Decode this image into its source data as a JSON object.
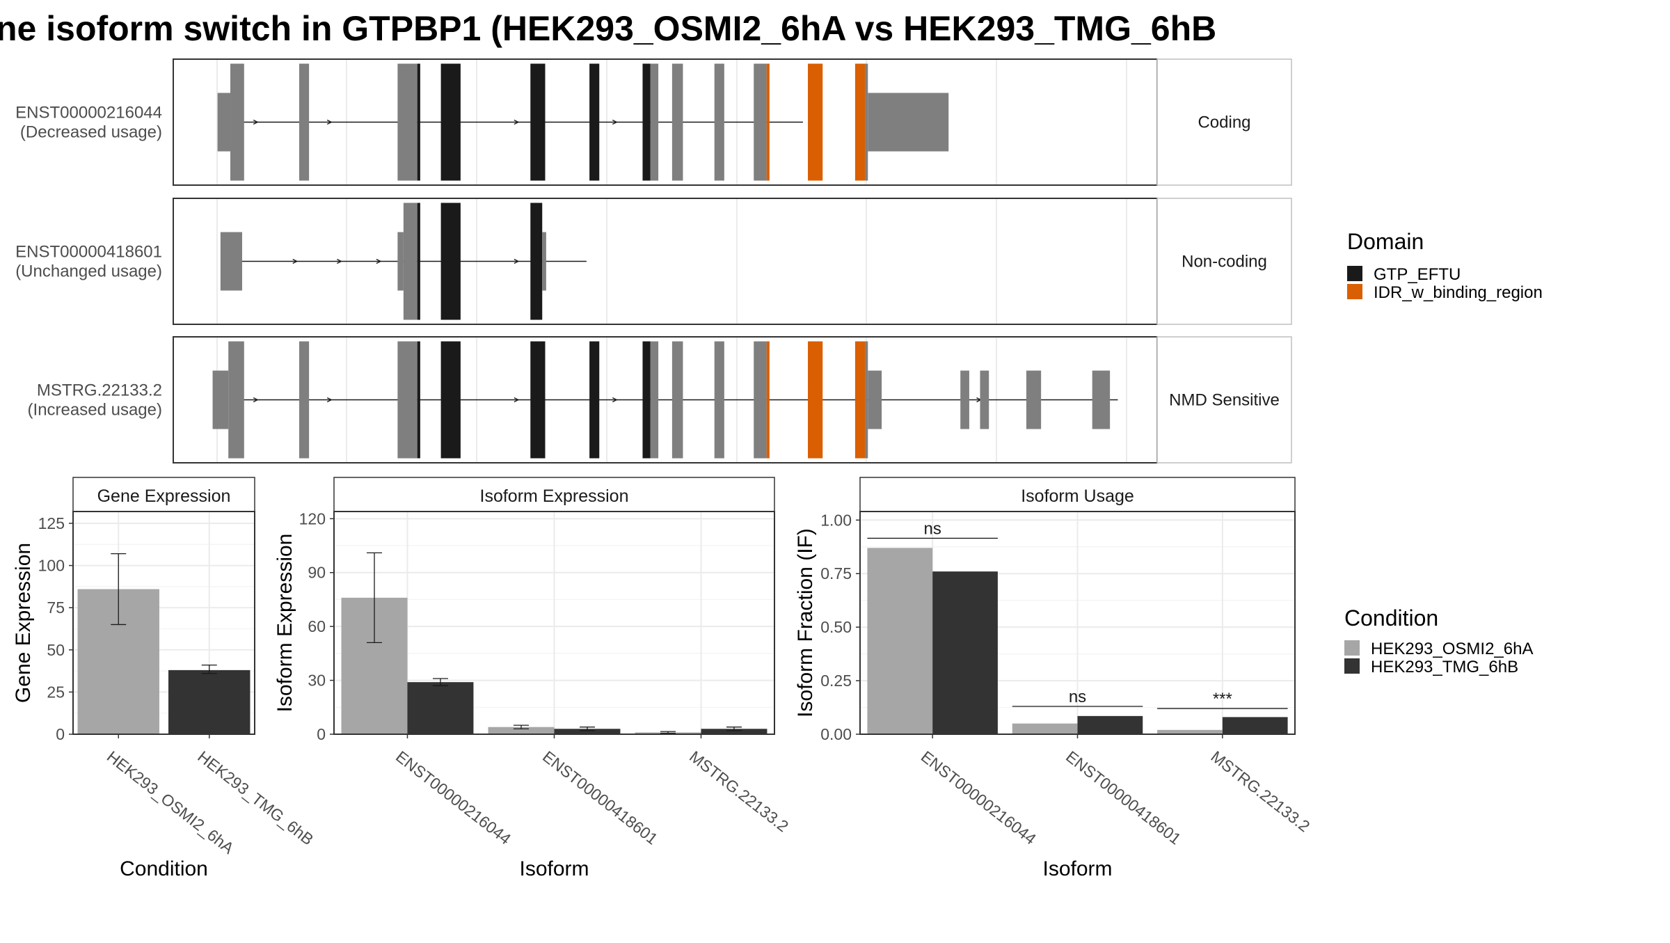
{
  "title": "ne isoform switch in GTPBP1 (HEK293_OSMI2_6hA vs HEK293_TMG_6hB",
  "colors": {
    "GTP_EFTU": "#1a1a1a",
    "IDR_w_binding_region": "#d95f02",
    "exon": "#7f7f7f",
    "OSMI2": "#a6a6a6",
    "TMG": "#333333",
    "strip_bg": "#ffffff",
    "grid": "#ebebeb",
    "border": "#333333"
  },
  "domain_legend": {
    "title": "Domain",
    "items": [
      {
        "label": "GTP_EFTU",
        "color_key": "GTP_EFTU"
      },
      {
        "label": "IDR_w_binding_region",
        "color_key": "IDR_w_binding_region"
      }
    ]
  },
  "condition_legend": {
    "title": "Condition",
    "items": [
      {
        "label": "HEK293_OSMI2_6hA",
        "color_key": "OSMI2"
      },
      {
        "label": "HEK293_TMG_6hB",
        "color_key": "TMG"
      }
    ]
  },
  "structure": {
    "tracks": [
      {
        "label_line1": "ENST00000216044",
        "label_line2": "(Decreased usage)",
        "strip": "Coding",
        "intron_range": [
          0.06,
          0.64
        ],
        "arrows": [
          0.085,
          0.16,
          0.24,
          0.35,
          0.45
        ],
        "blocks": [
          {
            "x0": 0.045,
            "x1": 0.058,
            "h": "utr",
            "c": "exon"
          },
          {
            "x0": 0.058,
            "x1": 0.072,
            "h": "cds",
            "c": "exon"
          },
          {
            "x0": 0.128,
            "x1": 0.138,
            "h": "cds",
            "c": "exon"
          },
          {
            "x0": 0.228,
            "x1": 0.248,
            "h": "cds",
            "c": "exon"
          },
          {
            "x0": 0.248,
            "x1": 0.251,
            "h": "cds",
            "c": "GTP_EFTU"
          },
          {
            "x0": 0.272,
            "x1": 0.292,
            "h": "cds",
            "c": "GTP_EFTU"
          },
          {
            "x0": 0.363,
            "x1": 0.378,
            "h": "cds",
            "c": "GTP_EFTU"
          },
          {
            "x0": 0.423,
            "x1": 0.433,
            "h": "cds",
            "c": "GTP_EFTU"
          },
          {
            "x0": 0.477,
            "x1": 0.485,
            "h": "cds",
            "c": "GTP_EFTU"
          },
          {
            "x0": 0.485,
            "x1": 0.493,
            "h": "cds",
            "c": "exon"
          },
          {
            "x0": 0.507,
            "x1": 0.518,
            "h": "cds",
            "c": "exon"
          },
          {
            "x0": 0.55,
            "x1": 0.56,
            "h": "cds",
            "c": "exon"
          },
          {
            "x0": 0.59,
            "x1": 0.603,
            "h": "cds",
            "c": "exon"
          },
          {
            "x0": 0.603,
            "x1": 0.606,
            "h": "cds",
            "c": "IDR_w_binding_region"
          },
          {
            "x0": 0.645,
            "x1": 0.66,
            "h": "cds",
            "c": "IDR_w_binding_region"
          },
          {
            "x0": 0.693,
            "x1": 0.703,
            "h": "cds",
            "c": "IDR_w_binding_region"
          },
          {
            "x0": 0.703,
            "x1": 0.706,
            "h": "cds",
            "c": "exon"
          },
          {
            "x0": 0.706,
            "x1": 0.788,
            "h": "utr",
            "c": "exon"
          }
        ]
      },
      {
        "label_line1": "ENST00000418601",
        "label_line2": "(Unchanged usage)",
        "strip": "Non-coding",
        "intron_range": [
          0.06,
          0.42
        ],
        "arrows": [
          0.125,
          0.17,
          0.21,
          0.35
        ],
        "blocks": [
          {
            "x0": 0.048,
            "x1": 0.07,
            "h": "utr",
            "c": "exon"
          },
          {
            "x0": 0.228,
            "x1": 0.234,
            "h": "utr",
            "c": "exon"
          },
          {
            "x0": 0.234,
            "x1": 0.248,
            "h": "cds",
            "c": "exon"
          },
          {
            "x0": 0.248,
            "x1": 0.251,
            "h": "cds",
            "c": "GTP_EFTU"
          },
          {
            "x0": 0.272,
            "x1": 0.292,
            "h": "cds",
            "c": "GTP_EFTU"
          },
          {
            "x0": 0.363,
            "x1": 0.375,
            "h": "cds",
            "c": "GTP_EFTU"
          },
          {
            "x0": 0.375,
            "x1": 0.379,
            "h": "utr",
            "c": "exon"
          }
        ]
      },
      {
        "label_line1": "MSTRG.22133.2",
        "label_line2": "(Increased usage)",
        "strip": "NMD Sensitive",
        "intron_range": [
          0.06,
          0.96
        ],
        "arrows": [
          0.085,
          0.16,
          0.24,
          0.35,
          0.45,
          0.82
        ],
        "blocks": [
          {
            "x0": 0.04,
            "x1": 0.056,
            "h": "utr",
            "c": "exon"
          },
          {
            "x0": 0.056,
            "x1": 0.072,
            "h": "cds",
            "c": "exon"
          },
          {
            "x0": 0.128,
            "x1": 0.138,
            "h": "cds",
            "c": "exon"
          },
          {
            "x0": 0.228,
            "x1": 0.248,
            "h": "cds",
            "c": "exon"
          },
          {
            "x0": 0.248,
            "x1": 0.251,
            "h": "cds",
            "c": "GTP_EFTU"
          },
          {
            "x0": 0.272,
            "x1": 0.292,
            "h": "cds",
            "c": "GTP_EFTU"
          },
          {
            "x0": 0.363,
            "x1": 0.378,
            "h": "cds",
            "c": "GTP_EFTU"
          },
          {
            "x0": 0.423,
            "x1": 0.433,
            "h": "cds",
            "c": "GTP_EFTU"
          },
          {
            "x0": 0.477,
            "x1": 0.485,
            "h": "cds",
            "c": "GTP_EFTU"
          },
          {
            "x0": 0.485,
            "x1": 0.493,
            "h": "cds",
            "c": "exon"
          },
          {
            "x0": 0.507,
            "x1": 0.518,
            "h": "cds",
            "c": "exon"
          },
          {
            "x0": 0.55,
            "x1": 0.56,
            "h": "cds",
            "c": "exon"
          },
          {
            "x0": 0.59,
            "x1": 0.603,
            "h": "cds",
            "c": "exon"
          },
          {
            "x0": 0.603,
            "x1": 0.606,
            "h": "cds",
            "c": "IDR_w_binding_region"
          },
          {
            "x0": 0.645,
            "x1": 0.66,
            "h": "cds",
            "c": "IDR_w_binding_region"
          },
          {
            "x0": 0.693,
            "x1": 0.703,
            "h": "cds",
            "c": "IDR_w_binding_region"
          },
          {
            "x0": 0.703,
            "x1": 0.706,
            "h": "cds",
            "c": "exon"
          },
          {
            "x0": 0.706,
            "x1": 0.72,
            "h": "utr",
            "c": "exon"
          },
          {
            "x0": 0.8,
            "x1": 0.809,
            "h": "utr",
            "c": "exon"
          },
          {
            "x0": 0.82,
            "x1": 0.829,
            "h": "utr",
            "c": "exon"
          },
          {
            "x0": 0.867,
            "x1": 0.882,
            "h": "utr",
            "c": "exon"
          },
          {
            "x0": 0.934,
            "x1": 0.952,
            "h": "utr",
            "c": "exon"
          }
        ]
      }
    ]
  },
  "chart_data": [
    {
      "type": "bar",
      "title": "Gene Expression",
      "xlabel": "Condition",
      "ylabel": "Gene Expression",
      "ylim": [
        0,
        132
      ],
      "yticks": [
        0,
        25,
        50,
        75,
        100,
        125
      ],
      "ytick_labels": [
        "0",
        "25",
        "50",
        "75",
        "100",
        "125"
      ],
      "categories": [
        "HEK293_OSMI2_6hA",
        "HEK293_TMG_6hB"
      ],
      "grouped": false,
      "series": [
        {
          "color_key": "OSMI2",
          "values": [
            86,
            null
          ],
          "err": [
            [
              65,
              107
            ],
            null
          ]
        },
        {
          "color_key": "TMG",
          "values": [
            null,
            38
          ],
          "err": [
            null,
            [
              36,
              41
            ]
          ]
        }
      ]
    },
    {
      "type": "bar",
      "title": "Isoform Expression",
      "xlabel": "Isoform",
      "ylabel": "Isoform Expression",
      "ylim": [
        0,
        124
      ],
      "yticks": [
        0,
        30,
        60,
        90,
        120
      ],
      "ytick_labels": [
        "0",
        "30",
        "60",
        "90",
        "120"
      ],
      "categories": [
        "ENST00000216044",
        "ENST00000418601",
        "MSTRG.22133.2"
      ],
      "grouped": true,
      "series": [
        {
          "name": "HEK293_OSMI2_6hA",
          "color_key": "OSMI2",
          "values": [
            76,
            4,
            1
          ],
          "err": [
            [
              51,
              101
            ],
            [
              3,
              5
            ],
            [
              0.5,
              1.5
            ]
          ]
        },
        {
          "name": "HEK293_TMG_6hB",
          "color_key": "TMG",
          "values": [
            29,
            3,
            3
          ],
          "err": [
            [
              27,
              31
            ],
            [
              2,
              4
            ],
            [
              2,
              4
            ]
          ]
        }
      ]
    },
    {
      "type": "bar",
      "title": "Isoform Usage",
      "xlabel": "Isoform",
      "ylabel": "Isoform Fraction (IF)",
      "ylim": [
        0,
        1.04
      ],
      "yticks": [
        0,
        0.25,
        0.5,
        0.75,
        1.0
      ],
      "ytick_labels": [
        "0.00",
        "0.25",
        "0.50",
        "0.75",
        "1.00"
      ],
      "categories": [
        "ENST00000216044",
        "ENST00000418601",
        "MSTRG.22133.2"
      ],
      "grouped": true,
      "series": [
        {
          "name": "HEK293_OSMI2_6hA",
          "color_key": "OSMI2",
          "values": [
            0.87,
            0.05,
            0.02
          ]
        },
        {
          "name": "HEK293_TMG_6hB",
          "color_key": "TMG",
          "values": [
            0.76,
            0.085,
            0.08
          ]
        }
      ],
      "significance": [
        {
          "category_index": 0,
          "label": "ns",
          "y": 0.915
        },
        {
          "category_index": 1,
          "label": "ns",
          "y": 0.13
        },
        {
          "category_index": 2,
          "label": "***",
          "y": 0.12
        }
      ]
    }
  ]
}
